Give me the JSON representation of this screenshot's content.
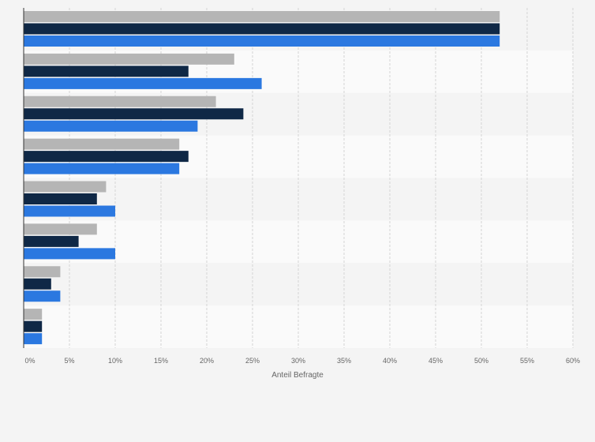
{
  "chart_data": {
    "type": "bar",
    "orientation": "horizontal",
    "categories": [
      "",
      "",
      "",
      "",
      "",
      "",
      "",
      ""
    ],
    "series": [
      {
        "color": "#b5b5b5",
        "values": [
          52,
          23,
          21,
          17,
          9,
          8,
          4,
          2
        ]
      },
      {
        "color": "#0f2846",
        "values": [
          52,
          18,
          24,
          18,
          8,
          6,
          3,
          2
        ]
      },
      {
        "color": "#2b78e0",
        "values": [
          52,
          26,
          19,
          17,
          10,
          10,
          4,
          2
        ]
      }
    ],
    "xlabel": "Anteil Befragte",
    "xlim": [
      0,
      60
    ],
    "x_ticks": [
      0,
      5,
      10,
      15,
      20,
      25,
      30,
      35,
      40,
      45,
      50,
      55,
      60
    ],
    "x_tick_labels": [
      "0%",
      "5%",
      "10%",
      "15%",
      "20%",
      "25%",
      "30%",
      "35%",
      "40%",
      "45%",
      "50%",
      "55%",
      "60%"
    ],
    "grid": true,
    "legend": "none"
  }
}
